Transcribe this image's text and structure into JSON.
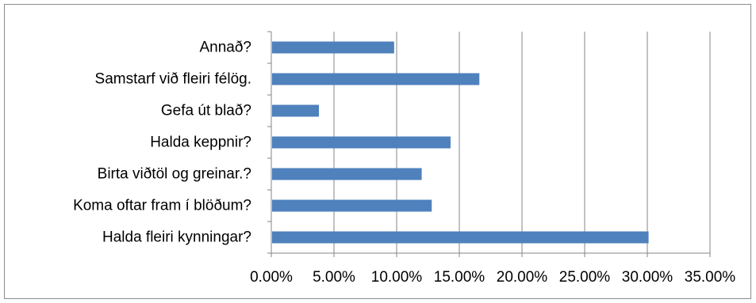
{
  "chart_data": {
    "type": "bar",
    "orientation": "horizontal",
    "categories": [
      "Annað?",
      "Samstarf við fleiri félög.",
      "Gefa út blað?",
      "Halda keppnir?",
      "Birta viðtöl og greinar.?",
      "Koma oftar fram í blöðum?",
      "Halda fleiri kynningar?"
    ],
    "series": [
      {
        "values": [
          0.098,
          0.166,
          0.038,
          0.143,
          0.12,
          0.128,
          0.301
        ]
      }
    ],
    "xlim": [
      0,
      0.35
    ],
    "x_ticks": [
      0,
      0.05,
      0.1,
      0.15,
      0.2,
      0.25,
      0.3,
      0.35
    ],
    "x_tick_labels": [
      "0.00%",
      "5.00%",
      "10.00%",
      "15.00%",
      "20.00%",
      "25.00%",
      "30.00%",
      "35.00%"
    ],
    "grid": "vertical",
    "legend": "none",
    "bar_color": "#4f81bd",
    "gridline_color": "#868686"
  }
}
